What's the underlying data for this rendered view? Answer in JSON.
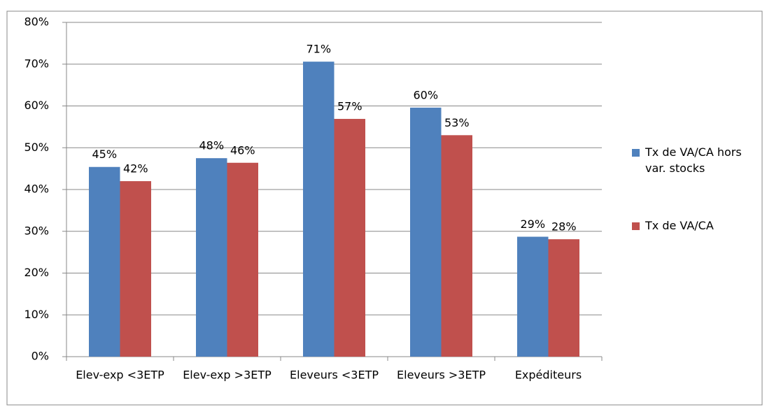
{
  "chart_data": {
    "type": "bar",
    "categories": [
      "Elev-exp <3ETP",
      "Elev-exp >3ETP",
      "Eleveurs <3ETP",
      "Eleveurs >3ETP",
      "Expéditeurs"
    ],
    "series": [
      {
        "name": "Tx de VA/CA hors var. stocks",
        "color": "#4f81bd",
        "values": [
          45.4,
          47.5,
          70.6,
          59.6,
          28.7
        ],
        "value_labels": [
          "45%",
          "48%",
          "71%",
          "60%",
          "29%"
        ]
      },
      {
        "name": "Tx de VA/CA",
        "color": "#c0504d",
        "values": [
          42.0,
          46.4,
          56.9,
          53.0,
          28.1
        ],
        "value_labels": [
          "42%",
          "46%",
          "57%",
          "53%",
          "28%"
        ]
      }
    ],
    "ylim": [
      0,
      80
    ],
    "yticks": [
      {
        "value": 0,
        "label": "0%"
      },
      {
        "value": 10,
        "label": "10%"
      },
      {
        "value": 20,
        "label": "20%"
      },
      {
        "value": 30,
        "label": "30%"
      },
      {
        "value": 40,
        "label": "40%"
      },
      {
        "value": 50,
        "label": "50%"
      },
      {
        "value": 60,
        "label": "60%"
      },
      {
        "value": 70,
        "label": "70%"
      },
      {
        "value": 80,
        "label": "80%"
      }
    ],
    "grid": true,
    "legend": "right"
  }
}
